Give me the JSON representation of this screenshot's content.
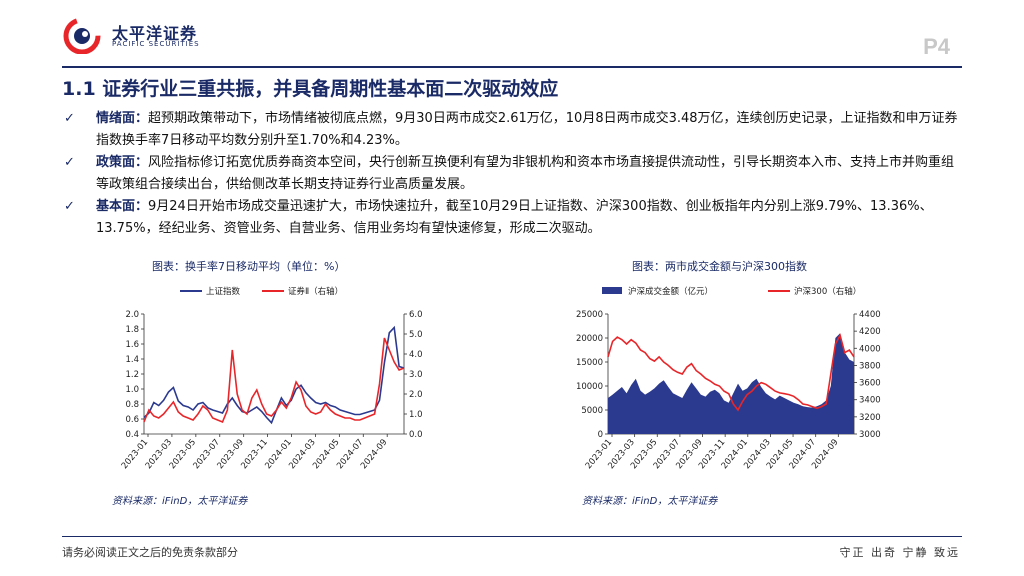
{
  "header": {
    "logo_text": "太平洋证券",
    "logo_sub": "PACIFIC SECURITIES",
    "page_num": "P4"
  },
  "title": "1.1 证券行业三重共振，并具备周期性基本面二次驱动效应",
  "bullets": [
    {
      "lead": "情绪面：",
      "text": "超预期政策带动下，市场情绪被彻底点燃，9月30日两市成交2.61万亿，10月8日两市成交3.48万亿，连续创历史记录，上证指数和申万证券指数换手率7日移动平均数分别升至1.70%和4.23%。"
    },
    {
      "lead": "政策面：",
      "text": "风险指标修订拓宽优质券商资本空间，央行创新互换便利有望为非银机构和资本市场直接提供流动性，引导长期资本入市、支持上市并购重组等政策组合接续出台，供给侧改革长期支持证券行业高质量发展。"
    },
    {
      "lead": "基本面：",
      "text": "9月24日开始市场成交量迅速扩大，市场快速拉升，截至10月29日上证指数、沪深300指数、创业板指年内分别上涨9.79%、13.36%、13.75%，经纪业务、资管业务、自营业务、信用业务均有望快速修复，形成二次驱动。"
    }
  ],
  "footer": {
    "left": "请务必阅读正文之后的免责条款部分",
    "right": "守正 出奇 宁静 致远"
  },
  "colors": {
    "navy": "#1a2a66",
    "red": "#e8262a",
    "blue": "#2b3a8f"
  },
  "chart_data": [
    {
      "type": "line",
      "title": "图表：换手率7日移动平均（单位：%）",
      "source": "资料来源：iFinD，太平洋证券",
      "x_ticks": [
        "2023-01",
        "2023-03",
        "2023-05",
        "2023-07",
        "2023-09",
        "2023-11",
        "2024-01",
        "2024-03",
        "2024-05",
        "2024-07",
        "2024-09"
      ],
      "y_left": {
        "min": 0.4,
        "max": 2.0,
        "ticks": [
          "0.4",
          "0.6",
          "0.8",
          "1.0",
          "1.2",
          "1.4",
          "1.6",
          "1.8",
          "2.0"
        ]
      },
      "y_right": {
        "min": 0.0,
        "max": 6.0,
        "ticks": [
          "0.0",
          "1.0",
          "2.0",
          "3.0",
          "4.0",
          "5.0",
          "6.0"
        ]
      },
      "series": [
        {
          "name": "上证指数",
          "axis": "left",
          "color": "#2b3a8f",
          "values": [
            0.62,
            0.68,
            0.82,
            0.78,
            0.85,
            0.96,
            1.02,
            0.84,
            0.78,
            0.76,
            0.72,
            0.8,
            0.82,
            0.75,
            0.72,
            0.7,
            0.68,
            0.8,
            0.88,
            0.78,
            0.7,
            0.68,
            0.72,
            0.76,
            0.7,
            0.62,
            0.55,
            0.72,
            0.88,
            0.78,
            0.85,
            1.0,
            1.05,
            0.95,
            0.88,
            0.82,
            0.8,
            0.82,
            0.78,
            0.76,
            0.72,
            0.7,
            0.68,
            0.66,
            0.66,
            0.68,
            0.7,
            0.72,
            0.85,
            1.35,
            1.75,
            1.82,
            1.3,
            1.28
          ]
        },
        {
          "name": "证券Ⅱ（右轴）",
          "axis": "right",
          "color": "#e8262a",
          "values": [
            0.6,
            1.2,
            0.9,
            0.8,
            1.0,
            1.3,
            1.6,
            1.1,
            0.9,
            0.8,
            0.7,
            1.0,
            1.4,
            1.2,
            0.8,
            0.7,
            0.6,
            1.2,
            4.2,
            2.0,
            1.2,
            1.0,
            1.8,
            2.2,
            1.5,
            1.0,
            0.9,
            1.2,
            1.6,
            1.3,
            1.8,
            2.6,
            2.2,
            1.4,
            1.1,
            1.0,
            1.1,
            1.5,
            1.2,
            1.0,
            0.9,
            0.8,
            0.8,
            0.7,
            0.7,
            0.8,
            0.9,
            1.0,
            2.5,
            4.8,
            4.2,
            3.6,
            3.2,
            3.3
          ]
        }
      ]
    },
    {
      "type": "area",
      "title": "图表：两市成交金额与沪深300指数",
      "source": "资料来源：iFinD，太平洋证券",
      "x_ticks": [
        "2023-01",
        "2023-03",
        "2023-05",
        "2023-07",
        "2023-09",
        "2023-11",
        "2024-01",
        "2024-03",
        "2024-05",
        "2024-07",
        "2024-09"
      ],
      "y_left": {
        "min": 0,
        "max": 25000,
        "ticks": [
          "0",
          "5000",
          "10000",
          "15000",
          "20000",
          "25000"
        ]
      },
      "y_right": {
        "min": 3000,
        "max": 4400,
        "ticks": [
          "3000",
          "3200",
          "3400",
          "3600",
          "3800",
          "4000",
          "4200",
          "4400"
        ]
      },
      "series": [
        {
          "name": "沪深成交金额（亿元）",
          "axis": "left",
          "color": "#2b3a8f",
          "values": [
            7500,
            8200,
            9000,
            9800,
            8500,
            10200,
            11500,
            9000,
            8200,
            8800,
            9500,
            10500,
            11200,
            9800,
            8500,
            8000,
            7500,
            9200,
            10800,
            9500,
            8200,
            7800,
            8800,
            9200,
            8500,
            7000,
            6500,
            8500,
            10500,
            9000,
            9500,
            10800,
            11500,
            9800,
            8500,
            7800,
            7200,
            8000,
            7500,
            7000,
            6500,
            6200,
            5800,
            5600,
            5500,
            5800,
            6200,
            7000,
            10000,
            20000,
            21000,
            17000,
            15500,
            15000
          ]
        },
        {
          "name": "沪深300（右轴）",
          "axis": "right",
          "color": "#e8262a",
          "values": [
            3900,
            4080,
            4130,
            4100,
            4050,
            4100,
            4060,
            3980,
            3950,
            3880,
            3850,
            3900,
            3840,
            3800,
            3750,
            3720,
            3700,
            3780,
            3820,
            3740,
            3700,
            3650,
            3620,
            3580,
            3560,
            3500,
            3470,
            3350,
            3280,
            3380,
            3460,
            3500,
            3560,
            3600,
            3580,
            3540,
            3500,
            3480,
            3470,
            3460,
            3440,
            3400,
            3350,
            3340,
            3320,
            3300,
            3320,
            3350,
            3700,
            4050,
            4150,
            3950,
            3980,
            3900
          ]
        }
      ]
    }
  ]
}
